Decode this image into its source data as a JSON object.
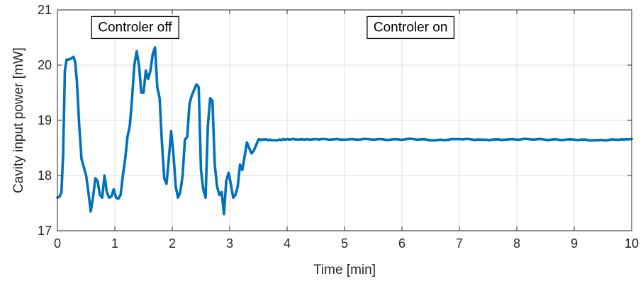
{
  "chart_data": {
    "type": "line",
    "xlabel": "Time [min]",
    "ylabel": "Cavity input power [mW]",
    "xlim": [
      0,
      10
    ],
    "ylim": [
      17,
      21
    ],
    "xticks": [
      0,
      1,
      2,
      3,
      4,
      5,
      6,
      7,
      8,
      9,
      10
    ],
    "yticks": [
      17,
      18,
      19,
      20,
      21
    ],
    "grid": true,
    "line_color": "#0072bd",
    "annotations": [
      {
        "text": "Controler off",
        "x": 1.35,
        "y": 20.7
      },
      {
        "text": "Controler on",
        "x": 6.15,
        "y": 20.7
      }
    ],
    "series": [
      {
        "x": [
          0.0,
          0.04,
          0.07,
          0.1,
          0.13,
          0.16,
          0.2,
          0.24,
          0.28,
          0.31,
          0.34,
          0.38,
          0.42,
          0.46,
          0.5,
          0.54,
          0.58,
          0.62,
          0.66,
          0.7,
          0.74,
          0.78,
          0.82,
          0.86,
          0.9,
          0.94,
          0.98,
          1.02,
          1.06,
          1.1,
          1.14,
          1.18,
          1.22,
          1.26,
          1.3,
          1.34,
          1.38,
          1.42,
          1.46,
          1.5,
          1.54,
          1.58,
          1.62,
          1.66,
          1.7,
          1.74,
          1.78,
          1.82,
          1.86,
          1.9,
          1.94,
          1.98,
          2.02,
          2.06,
          2.1,
          2.14,
          2.18,
          2.22,
          2.26,
          2.3,
          2.34,
          2.38,
          2.42,
          2.46,
          2.5,
          2.54,
          2.58,
          2.62,
          2.66,
          2.7,
          2.74,
          2.78,
          2.82,
          2.86,
          2.9,
          2.94,
          2.98,
          3.02,
          3.06,
          3.1,
          3.14,
          3.18,
          3.22,
          3.26,
          3.3,
          3.34,
          3.38,
          3.42,
          3.5,
          3.6,
          3.8,
          4.0,
          4.3,
          4.6,
          5.0,
          5.4,
          5.8,
          6.2,
          6.6,
          7.0,
          7.4,
          7.8,
          8.2,
          8.6,
          9.0,
          9.4,
          9.8,
          10.0
        ],
        "y": [
          17.6,
          17.62,
          17.7,
          18.4,
          19.9,
          20.1,
          20.1,
          20.12,
          20.15,
          20.05,
          19.7,
          18.9,
          18.3,
          18.15,
          18.0,
          17.7,
          17.35,
          17.6,
          17.95,
          17.9,
          17.65,
          17.6,
          18.0,
          17.7,
          17.6,
          17.62,
          17.75,
          17.6,
          17.58,
          17.65,
          18.0,
          18.3,
          18.7,
          18.9,
          19.4,
          20.0,
          20.25,
          20.0,
          19.5,
          19.5,
          19.9,
          19.75,
          19.9,
          20.2,
          20.32,
          19.6,
          19.4,
          18.6,
          17.95,
          17.85,
          18.3,
          18.8,
          18.4,
          17.8,
          17.6,
          17.7,
          18.0,
          18.65,
          18.7,
          19.3,
          19.45,
          19.55,
          19.65,
          19.6,
          18.1,
          17.75,
          17.6,
          18.9,
          19.4,
          19.35,
          18.2,
          17.8,
          17.65,
          17.7,
          17.3,
          17.9,
          18.05,
          17.85,
          17.6,
          17.65,
          17.8,
          18.2,
          18.1,
          18.35,
          18.6,
          18.5,
          18.4,
          18.45,
          18.65,
          18.65,
          18.64,
          18.66,
          18.65,
          18.66,
          18.65,
          18.66,
          18.65,
          18.66,
          18.64,
          18.66,
          18.65,
          18.65,
          18.66,
          18.65,
          18.65,
          18.64,
          18.65,
          18.66
        ]
      }
    ]
  }
}
